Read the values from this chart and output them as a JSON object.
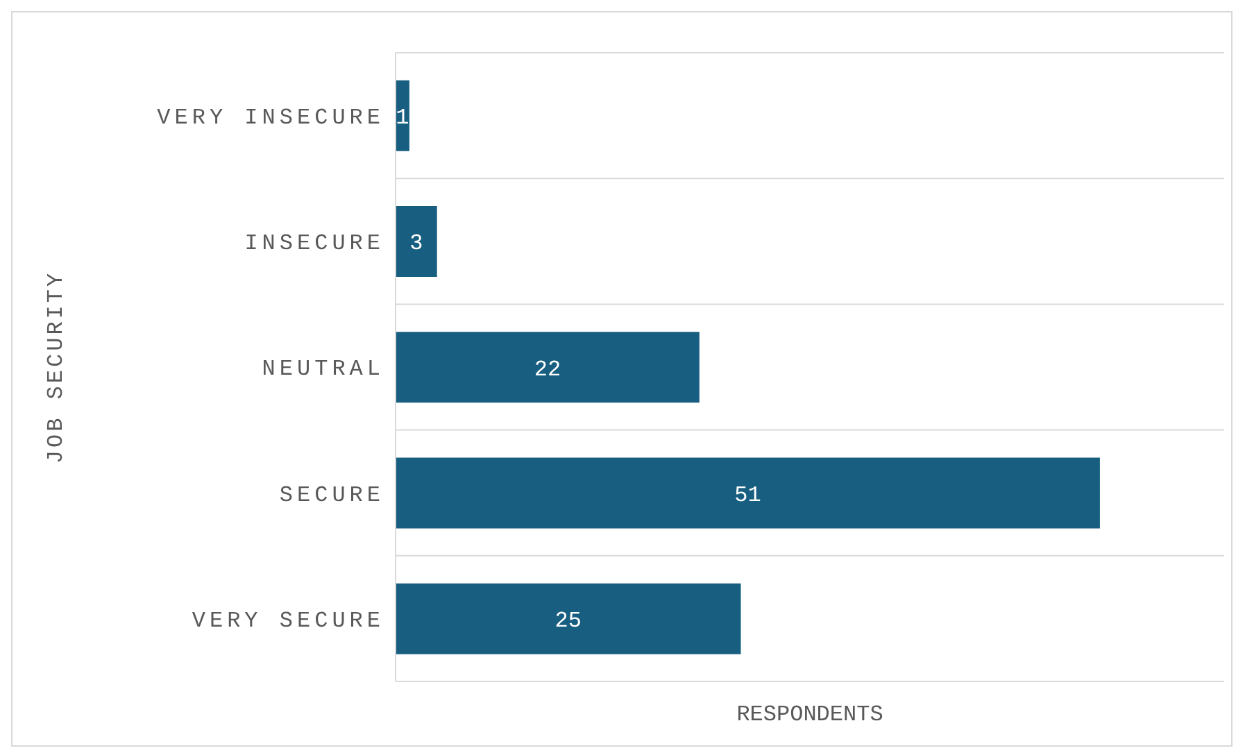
{
  "chart_data": {
    "type": "bar",
    "orientation": "horizontal",
    "ylabel": "JOB SECURITY",
    "xlabel": "RESPONDENTS",
    "categories": [
      "VERY INSECURE",
      "INSECURE",
      "NEUTRAL",
      "SECURE",
      "VERY SECURE"
    ],
    "values": [
      1,
      3,
      22,
      51,
      25
    ],
    "color": "#175e80",
    "data_labels": true,
    "grid": "y",
    "tick_labels": "y"
  }
}
